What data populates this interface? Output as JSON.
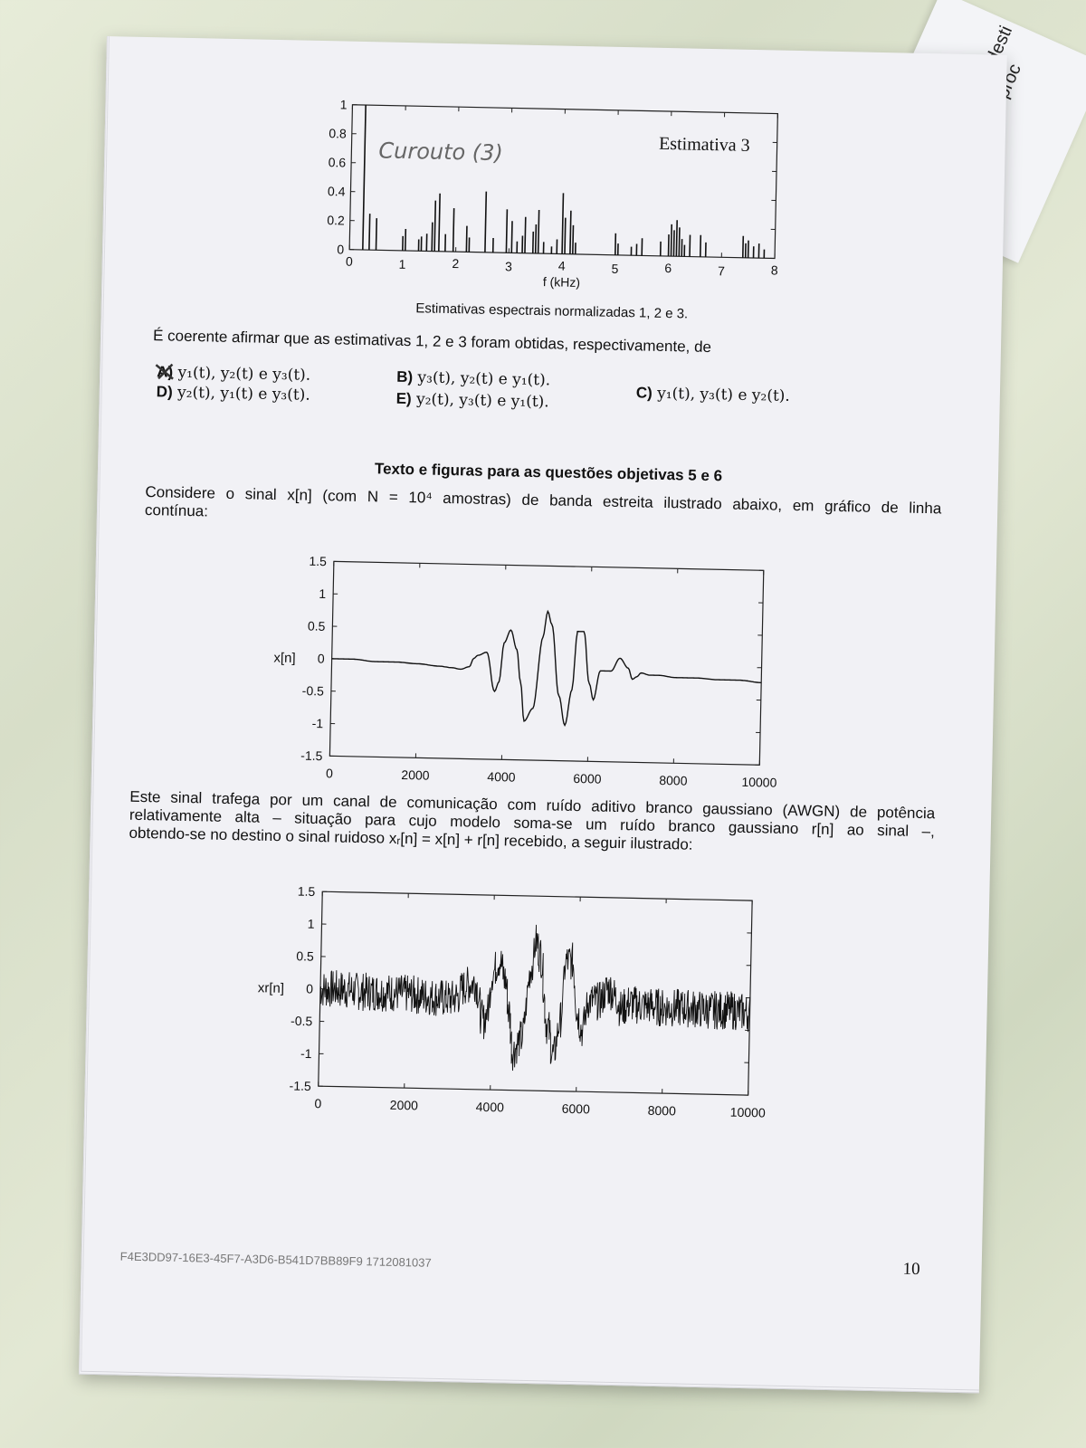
{
  "side_paper": {
    "text": "No desti\nproc"
  },
  "chart_data": [
    {
      "type": "bar",
      "title": "Estimativa 3",
      "xlabel": "f (kHz)",
      "ylabel": "",
      "xlim": [
        0,
        8
      ],
      "ylim": [
        0,
        1
      ],
      "xticks": [
        "0",
        "1",
        "2",
        "3",
        "4",
        "5",
        "6",
        "7",
        "8"
      ],
      "yticks": [
        "0",
        "0.2",
        "0.4",
        "0.6",
        "0.8",
        "1"
      ],
      "grid": false,
      "x": [
        0.25,
        0.37,
        0.5,
        1.0,
        1.05,
        1.3,
        1.35,
        1.45,
        1.55,
        1.6,
        1.68,
        1.8,
        1.95,
        2.2,
        2.25,
        2.55,
        2.7,
        2.95,
        3.05,
        3.15,
        3.25,
        3.3,
        3.45,
        3.5,
        3.55,
        3.65,
        3.8,
        3.9,
        4.0,
        4.05,
        4.15,
        4.2,
        4.25,
        5.0,
        5.05,
        5.3,
        5.4,
        5.5,
        5.85,
        6.0,
        6.05,
        6.1,
        6.15,
        6.2,
        6.25,
        6.3,
        6.4,
        6.6,
        6.7,
        7.4,
        7.45,
        7.5,
        7.6,
        7.7,
        7.8
      ],
      "values": [
        1.0,
        0.25,
        0.22,
        0.1,
        0.15,
        0.08,
        0.1,
        0.12,
        0.2,
        0.35,
        0.4,
        0.12,
        0.3,
        0.18,
        0.1,
        0.42,
        0.1,
        0.3,
        0.22,
        0.08,
        0.12,
        0.25,
        0.15,
        0.2,
        0.3,
        0.08,
        0.05,
        0.1,
        0.42,
        0.25,
        0.3,
        0.2,
        0.08,
        0.15,
        0.08,
        0.06,
        0.08,
        0.12,
        0.1,
        0.15,
        0.22,
        0.18,
        0.25,
        0.2,
        0.12,
        0.08,
        0.15,
        0.15,
        0.1,
        0.15,
        0.1,
        0.12,
        0.08,
        0.1,
        0.06
      ],
      "annotation": "Curouto (3)"
    },
    {
      "type": "line",
      "title": "",
      "xlabel": "",
      "ylabel": "x[n]",
      "xlim": [
        0,
        10000
      ],
      "ylim": [
        -1.5,
        1.5
      ],
      "xticks": [
        "0",
        "2000",
        "4000",
        "6000",
        "8000",
        "10000"
      ],
      "yticks": [
        "1.5",
        "1",
        "0.5",
        "0",
        "-0.5",
        "-1",
        "-1.5"
      ],
      "grid": false,
      "x": [
        0,
        500,
        1000,
        1500,
        2000,
        2500,
        2800,
        3000,
        3200,
        3300,
        3400,
        3600,
        3800,
        3900,
        4000,
        4150,
        4300,
        4400,
        4500,
        4700,
        4900,
        5000,
        5100,
        5300,
        5450,
        5600,
        5700,
        5850,
        6000,
        6100,
        6250,
        6500,
        6700,
        6900,
        7000,
        7100,
        7200,
        7400,
        7600,
        8000,
        8500,
        9000,
        9500,
        10000
      ],
      "y": [
        0.0,
        0.0,
        -0.03,
        -0.03,
        -0.05,
        -0.08,
        -0.1,
        -0.12,
        -0.08,
        0.05,
        0.1,
        0.15,
        -0.45,
        -0.3,
        0.3,
        0.5,
        0.2,
        -0.3,
        -0.9,
        -0.7,
        0.4,
        0.8,
        0.6,
        -0.5,
        -0.95,
        -0.4,
        0.5,
        0.5,
        -0.3,
        -0.55,
        -0.1,
        -0.1,
        0.1,
        -0.05,
        -0.22,
        -0.18,
        -0.12,
        -0.15,
        -0.15,
        -0.18,
        -0.18,
        -0.2,
        -0.2,
        -0.23
      ]
    },
    {
      "type": "line",
      "title": "",
      "xlabel": "",
      "ylabel": "xr[n]",
      "xlim": [
        0,
        10000
      ],
      "ylim": [
        -1.5,
        1.5
      ],
      "xticks": [
        "0",
        "2000",
        "4000",
        "6000",
        "8000",
        "10000"
      ],
      "yticks": [
        "1.5",
        "1",
        "0.5",
        "0",
        "-0.5",
        "-1",
        "-1.5"
      ],
      "grid": false,
      "noise_amplitude": 0.3,
      "x": [
        0,
        500,
        1000,
        1500,
        2000,
        2500,
        2800,
        3000,
        3200,
        3300,
        3400,
        3600,
        3800,
        3900,
        4000,
        4150,
        4300,
        4400,
        4500,
        4700,
        4900,
        5000,
        5100,
        5300,
        5450,
        5600,
        5700,
        5850,
        6000,
        6100,
        6250,
        6500,
        6700,
        6900,
        7000,
        7100,
        7200,
        7400,
        7600,
        8000,
        8500,
        9000,
        9500,
        10000
      ],
      "y": [
        0.0,
        0.0,
        -0.03,
        -0.03,
        -0.05,
        -0.08,
        -0.1,
        -0.12,
        -0.08,
        0.05,
        0.1,
        0.15,
        -0.45,
        -0.3,
        0.3,
        0.5,
        0.2,
        -0.3,
        -0.9,
        -0.7,
        0.4,
        0.8,
        0.6,
        -0.5,
        -0.95,
        -0.4,
        0.5,
        0.5,
        -0.3,
        -0.55,
        -0.1,
        -0.1,
        0.1,
        -0.05,
        -0.22,
        -0.18,
        -0.12,
        -0.15,
        -0.15,
        -0.18,
        -0.18,
        -0.2,
        -0.2,
        -0.23
      ]
    }
  ],
  "spectral_caption": "Estimativas espectrais normalizadas 1, 2 e 3.",
  "question_stem": "É coerente afirmar que as estimativas 1, 2 e 3 foram obtidas, respectivamente, de",
  "options": [
    {
      "letter": "A)",
      "text": "y₁(t), y₂(t) e y₃(t)."
    },
    {
      "letter": "B)",
      "text": "y₃(t), y₂(t) e y₁(t)."
    },
    {
      "letter": "C)",
      "text": "y₁(t), y₃(t) e y₂(t)."
    },
    {
      "letter": "D)",
      "text": "y₂(t), y₁(t) e y₃(t)."
    },
    {
      "letter": "E)",
      "text": "y₂(t), y₃(t) e y₁(t)."
    }
  ],
  "section_heading": "Texto e figuras para as questões objetivas 5 e 6",
  "paragraph1_line1": "Considere o sinal x[n] (com N = 10⁴ amostras) de banda estreita ilustrado abaixo, em gráfico de linha",
  "paragraph1_line2": "contínua:",
  "paragraph2_line1": "Este sinal trafega por um canal de comunicação com ruído aditivo branco gaussiano (AWGN) de potência",
  "paragraph2_line2": "relativamente alta – situação para cujo modelo soma-se um ruído branco gaussiano r[n] ao sinal –,",
  "paragraph2_line3": "obtendo-se no destino o sinal ruidoso xᵣ[n] = x[n] + r[n] recebido, a seguir ilustrado:",
  "footer_code": "F4E3DD97-16E3-45F7-A3D6-B541D7BB89F9 1712081037",
  "page_number": "10"
}
